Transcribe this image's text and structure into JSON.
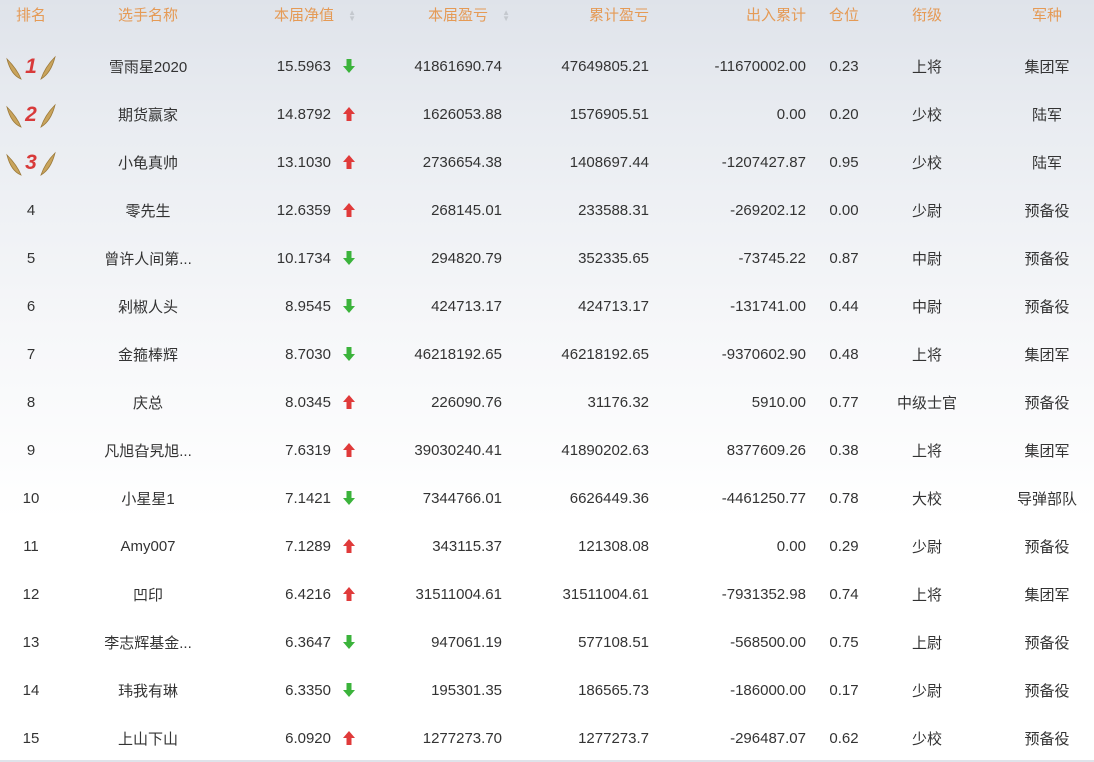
{
  "headers": {
    "rank": "排名",
    "name": "选手名称",
    "net": "本届净值",
    "pnl": "本届盈亏",
    "cum": "累计盈亏",
    "flow": "出入累计",
    "pos": "仓位",
    "grade": "衔级",
    "branch": "军种"
  },
  "colors": {
    "header": "#e59a55",
    "up": "#e03a3a",
    "down": "#3bb33b",
    "medal_num": "#d83a3a",
    "medal_wing": "#c9a45c"
  },
  "rows": [
    {
      "rank": "1",
      "name": "雪雨星2020",
      "net": "15.5963",
      "trend": "down",
      "pnl": "41861690.74",
      "cum": "47649805.21",
      "flow": "-11670002.00",
      "pos": "0.23",
      "grade": "上将",
      "branch": "集团军"
    },
    {
      "rank": "2",
      "name": "期货赢家",
      "net": "14.8792",
      "trend": "up",
      "pnl": "1626053.88",
      "cum": "1576905.51",
      "flow": "0.00",
      "pos": "0.20",
      "grade": "少校",
      "branch": "陆军"
    },
    {
      "rank": "3",
      "name": "小龟真帅",
      "net": "13.1030",
      "trend": "up",
      "pnl": "2736654.38",
      "cum": "1408697.44",
      "flow": "-1207427.87",
      "pos": "0.95",
      "grade": "少校",
      "branch": "陆军"
    },
    {
      "rank": "4",
      "name": "零先生",
      "net": "12.6359",
      "trend": "up",
      "pnl": "268145.01",
      "cum": "233588.31",
      "flow": "-269202.12",
      "pos": "0.00",
      "grade": "少尉",
      "branch": "预备役"
    },
    {
      "rank": "5",
      "name": "曾许人间第...",
      "net": "10.1734",
      "trend": "down",
      "pnl": "294820.79",
      "cum": "352335.65",
      "flow": "-73745.22",
      "pos": "0.87",
      "grade": "中尉",
      "branch": "预备役"
    },
    {
      "rank": "6",
      "name": "剁椒人头",
      "net": "8.9545",
      "trend": "down",
      "pnl": "424713.17",
      "cum": "424713.17",
      "flow": "-131741.00",
      "pos": "0.44",
      "grade": "中尉",
      "branch": "预备役"
    },
    {
      "rank": "7",
      "name": "金箍棒辉",
      "net": "8.7030",
      "trend": "down",
      "pnl": "46218192.65",
      "cum": "46218192.65",
      "flow": "-9370602.90",
      "pos": "0.48",
      "grade": "上将",
      "branch": "集团军"
    },
    {
      "rank": "8",
      "name": "庆总",
      "net": "8.0345",
      "trend": "up",
      "pnl": "226090.76",
      "cum": "31176.32",
      "flow": "5910.00",
      "pos": "0.77",
      "grade": "中级士官",
      "branch": "预备役"
    },
    {
      "rank": "9",
      "name": "凡旭旮旯旭...",
      "net": "7.6319",
      "trend": "up",
      "pnl": "39030240.41",
      "cum": "41890202.63",
      "flow": "8377609.26",
      "pos": "0.38",
      "grade": "上将",
      "branch": "集团军"
    },
    {
      "rank": "10",
      "name": "小星星1",
      "net": "7.1421",
      "trend": "down",
      "pnl": "7344766.01",
      "cum": "6626449.36",
      "flow": "-4461250.77",
      "pos": "0.78",
      "grade": "大校",
      "branch": "导弹部队"
    },
    {
      "rank": "11",
      "name": "Amy007",
      "net": "7.1289",
      "trend": "up",
      "pnl": "343115.37",
      "cum": "121308.08",
      "flow": "0.00",
      "pos": "0.29",
      "grade": "少尉",
      "branch": "预备役"
    },
    {
      "rank": "12",
      "name": "凹印",
      "net": "6.4216",
      "trend": "up",
      "pnl": "31511004.61",
      "cum": "31511004.61",
      "flow": "-7931352.98",
      "pos": "0.74",
      "grade": "上将",
      "branch": "集团军"
    },
    {
      "rank": "13",
      "name": "李志辉基金...",
      "net": "6.3647",
      "trend": "down",
      "pnl": "947061.19",
      "cum": "577108.51",
      "flow": "-568500.00",
      "pos": "0.75",
      "grade": "上尉",
      "branch": "预备役"
    },
    {
      "rank": "14",
      "name": "玮我有琳",
      "net": "6.3350",
      "trend": "down",
      "pnl": "195301.35",
      "cum": "186565.73",
      "flow": "-186000.00",
      "pos": "0.17",
      "grade": "少尉",
      "branch": "预备役"
    },
    {
      "rank": "15",
      "name": "上山下山",
      "net": "6.0920",
      "trend": "up",
      "pnl": "1277273.70",
      "cum": "1277273.7",
      "flow": "-296487.07",
      "pos": "0.62",
      "grade": "少校",
      "branch": "预备役"
    }
  ]
}
